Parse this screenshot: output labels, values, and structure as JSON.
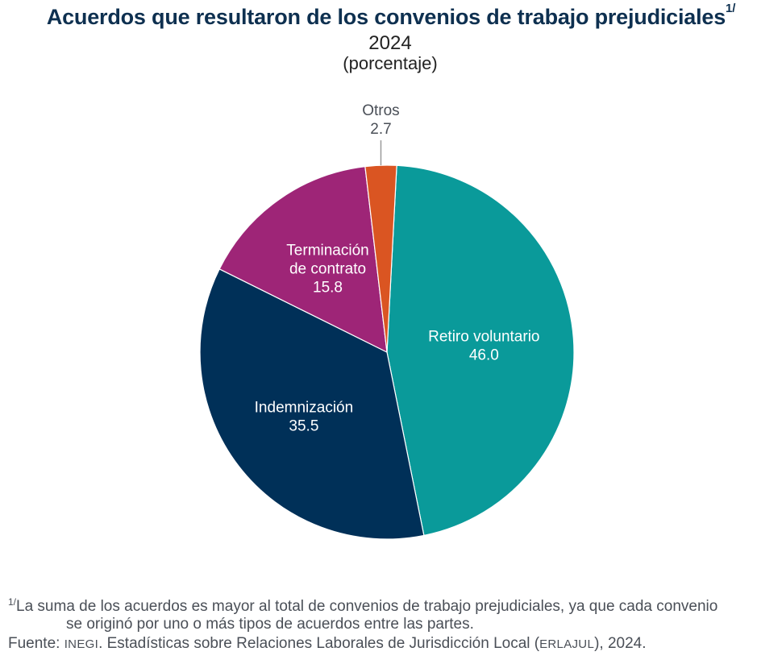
{
  "header": {
    "title": "Acuerdos que resultaron de los convenios de trabajo prejudiciales",
    "title_note": "1/",
    "year": "2024",
    "unit": "(porcentaje)"
  },
  "chart_data": {
    "type": "pie",
    "title": "Acuerdos que resultaron de los convenios de trabajo prejudiciales",
    "subtitle": "2024 (porcentaje)",
    "start_angle_deg_clockwise_from_top": 3,
    "direction": "clockwise",
    "slices": [
      {
        "label": "Retiro voluntario",
        "label_lines": [
          "Retiro voluntario"
        ],
        "value": 46.0,
        "value_text": "46.0",
        "color": "#0A9A9A",
        "label_position": "inside"
      },
      {
        "label": "Indemnización",
        "label_lines": [
          "Indemnización"
        ],
        "value": 35.5,
        "value_text": "35.5",
        "color": "#003058",
        "label_position": "inside"
      },
      {
        "label": "Terminación de contrato",
        "label_lines": [
          "Terminación",
          "de contrato"
        ],
        "value": 15.8,
        "value_text": "15.8",
        "color": "#9E2577",
        "label_position": "inside"
      },
      {
        "label": "Otros",
        "label_lines": [
          "Otros"
        ],
        "value": 2.7,
        "value_text": "2.7",
        "color": "#DA5522",
        "label_position": "outside"
      }
    ]
  },
  "footer": {
    "note_marker": "1/",
    "note_line1": "La suma de los acuerdos es mayor al total de convenios de trabajo prejudiciales, ya que cada convenio",
    "note_line2": "se originó por uno o más tipos de acuerdos entre las partes.",
    "source_label": "Fuente:",
    "source_org": "INEGI",
    "source_text": ". Estadísticas sobre Relaciones Laborales de Jurisdicción Local (",
    "source_acronym": "ERLAJUL",
    "source_end": "), 2024."
  }
}
